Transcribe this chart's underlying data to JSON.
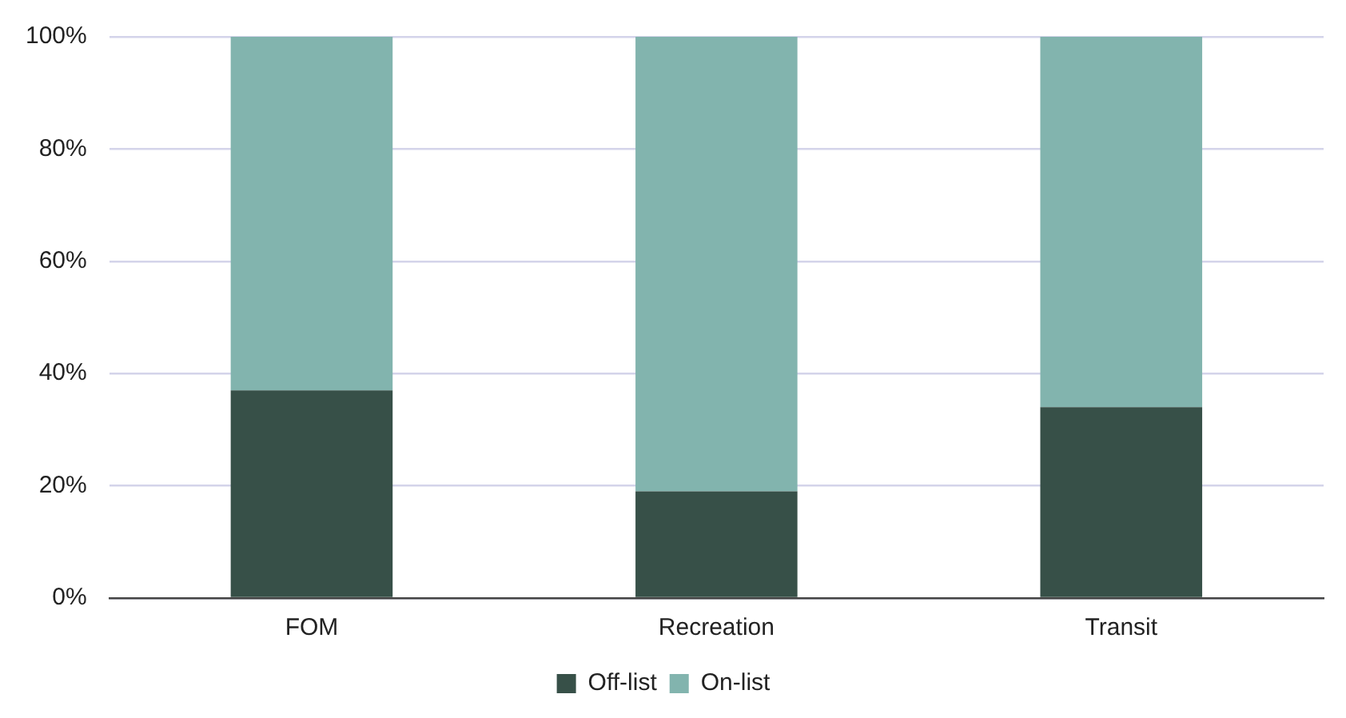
{
  "chart_data": {
    "type": "bar",
    "stacked": true,
    "categories": [
      "FOM",
      "Recreation",
      "Transit"
    ],
    "series": [
      {
        "name": "Off-list",
        "color": "#375048",
        "values": [
          37,
          19,
          34
        ]
      },
      {
        "name": "On-list",
        "color": "#82b4ae",
        "values": [
          63,
          81,
          66
        ]
      }
    ],
    "ylim": [
      0,
      100
    ],
    "yticks": [
      {
        "value": 0,
        "label": "0%"
      },
      {
        "value": 20,
        "label": "20%"
      },
      {
        "value": 40,
        "label": "40%"
      },
      {
        "value": 60,
        "label": "60%"
      },
      {
        "value": 80,
        "label": "80%"
      },
      {
        "value": 100,
        "label": "100%"
      }
    ],
    "grid": "y",
    "legend": "bottom"
  }
}
